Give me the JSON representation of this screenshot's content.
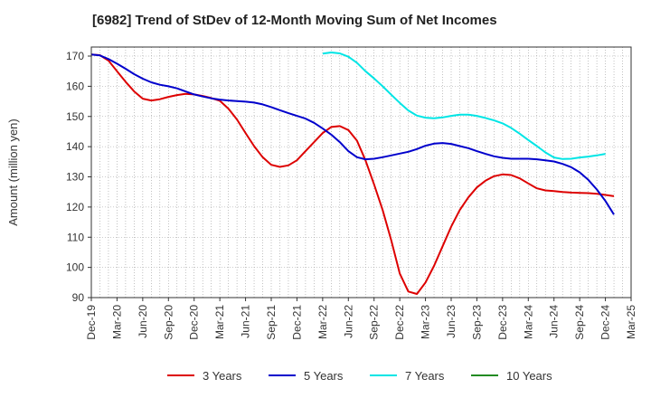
{
  "chart_data": {
    "type": "line",
    "title": "[6982]  Trend of StDev of 12-Month Moving Sum of Net Incomes",
    "ylabel": "Amount (million yen)",
    "xlabel": "",
    "ylim": [
      90,
      173
    ],
    "yticks": [
      90,
      100,
      110,
      120,
      130,
      140,
      150,
      160,
      170
    ],
    "x_tick_labels": [
      "Dec-19",
      "Mar-20",
      "Jun-20",
      "Sep-20",
      "Dec-20",
      "Mar-21",
      "Jun-21",
      "Sep-21",
      "Dec-21",
      "Mar-22",
      "Jun-22",
      "Sep-22",
      "Dec-22",
      "Mar-23",
      "Jun-23",
      "Sep-23",
      "Dec-23",
      "Mar-24",
      "Jun-24",
      "Sep-24",
      "Dec-24",
      "Mar-25"
    ],
    "x_start": "Dec-19",
    "grid": true,
    "legend_position": "bottom",
    "series": [
      {
        "name": "3 Years",
        "color": "#dd0000",
        "start": "Dec-19",
        "values": [
          170.5,
          170.3,
          168.5,
          165,
          161.5,
          158.3,
          155.9,
          155.3,
          155.7,
          156.5,
          157.1,
          157.5,
          157.3,
          156.8,
          156.1,
          155.2,
          152.6,
          149,
          144.5,
          140.2,
          136.5,
          134,
          133.3,
          133.8,
          135.5,
          138.5,
          141.5,
          144.5,
          146.5,
          146.8,
          145.5,
          142,
          135.5,
          127.5,
          119,
          109,
          98,
          92,
          91.2,
          95,
          100.5,
          107,
          113.5,
          119,
          123.2,
          126.5,
          128.7,
          130.2,
          130.8,
          130.6,
          129.5,
          127.8,
          126.2,
          125.5,
          125.3,
          125,
          124.8,
          124.7,
          124.6,
          124.4,
          124,
          123.6
        ]
      },
      {
        "name": "5 Years",
        "color": "#0000cc",
        "start": "Dec-19",
        "values": [
          170.5,
          170.2,
          169,
          167.5,
          165.8,
          164,
          162.5,
          161.3,
          160.5,
          160,
          159.3,
          158.3,
          157.3,
          156.6,
          156,
          155.6,
          155.3,
          155.1,
          154.9,
          154.6,
          154,
          153.1,
          152.1,
          151.1,
          150.2,
          149.3,
          147.9,
          146,
          144,
          141.5,
          138.5,
          136.5,
          135.8,
          136,
          136.5,
          137.1,
          137.7,
          138.3,
          139.2,
          140.3,
          141,
          141.2,
          140.9,
          140.2,
          139.5,
          138.5,
          137.6,
          136.8,
          136.3,
          136,
          136,
          136,
          135.8,
          135.5,
          135.1,
          134.3,
          133.2,
          131.5,
          129,
          125.8,
          122,
          117.5
        ]
      },
      {
        "name": "7 Years",
        "color": "#00e5e5",
        "start": "Mar-22",
        "values": [
          170.8,
          171.2,
          170.9,
          169.8,
          167.8,
          165,
          162.6,
          160,
          157.2,
          154.5,
          152,
          150.3,
          149.6,
          149.4,
          149.7,
          150.2,
          150.6,
          150.6,
          150.2,
          149.5,
          148.7,
          147.7,
          146.2,
          144.3,
          142.2,
          140.2,
          138.1,
          136.4,
          135.9,
          136,
          136.4,
          136.7,
          137.1,
          137.6
        ]
      },
      {
        "name": "10 Years",
        "color": "#228b22",
        "start": "Dec-19",
        "values": []
      }
    ]
  }
}
